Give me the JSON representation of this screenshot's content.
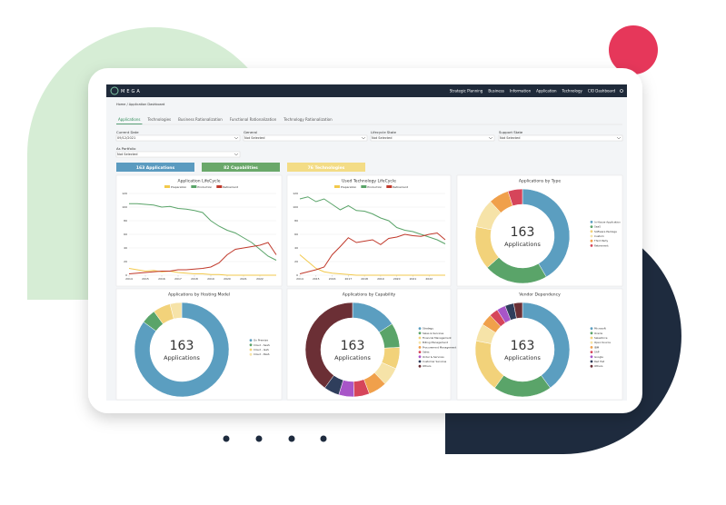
{
  "brand": "MEGA",
  "nav": [
    "Strategic Planning",
    "Business",
    "Information",
    "Application",
    "Technology",
    "CIO Dashboard"
  ],
  "breadcrumb": "Home / Application Dashboard",
  "tabs": [
    "Applications",
    "Technologies",
    "Business Rationalization",
    "Functional Rationalization",
    "Technology Rationalization"
  ],
  "filters": [
    {
      "label": "Current Date",
      "value": "09/12/2021"
    },
    {
      "label": "General",
      "value": "Not Selected"
    },
    {
      "label": "Lifecycle State",
      "value": "Not Selected"
    },
    {
      "label": "Support State",
      "value": "Not Selected"
    },
    {
      "label": "As Portfolio",
      "value": "Not Selected"
    }
  ],
  "badges": [
    {
      "text": "163 Applications",
      "color": "#5b9bc0"
    },
    {
      "text": "82 Capabilities",
      "color": "#6aa86a"
    },
    {
      "text": "76 Technologies",
      "color": "#f3dc86"
    }
  ],
  "chart_data": [
    {
      "type": "line",
      "title": "Application LifeCycle",
      "xlim": [
        2014,
        2023
      ],
      "xticks": [
        2014,
        2015,
        2016,
        2017,
        2018,
        2019,
        2020,
        2021,
        2022
      ],
      "ylim": [
        0,
        120
      ],
      "yticks": [
        0,
        20,
        40,
        60,
        80,
        100,
        120
      ],
      "grid": true,
      "x": [
        2014,
        2014.5,
        2015,
        2015.5,
        2016,
        2016.5,
        2017,
        2017.5,
        2018,
        2018.5,
        2019,
        2019.5,
        2020,
        2020.5,
        2021,
        2021.5,
        2022,
        2022.5,
        2023
      ],
      "series": [
        {
          "name": "Preparation",
          "color": "#f2c94c",
          "values": [
            10,
            8,
            6,
            7,
            5,
            6,
            4,
            3,
            2,
            2,
            1,
            1,
            0,
            0,
            0,
            0,
            0,
            0,
            0
          ]
        },
        {
          "name": "Production",
          "color": "#5aa469",
          "values": [
            105,
            105,
            104,
            103,
            100,
            101,
            98,
            97,
            95,
            92,
            80,
            72,
            66,
            62,
            55,
            48,
            38,
            28,
            22
          ]
        },
        {
          "name": "Retirement",
          "color": "#c0392b",
          "values": [
            2,
            3,
            4,
            5,
            6,
            6,
            8,
            8,
            9,
            10,
            12,
            18,
            30,
            38,
            40,
            42,
            44,
            48,
            30
          ]
        }
      ]
    },
    {
      "type": "line",
      "title": "Used Technology LifeCycle",
      "xlim": [
        2014,
        2023
      ],
      "xticks": [
        2014,
        2015,
        2016,
        2017,
        2018,
        2019,
        2020,
        2021,
        2022
      ],
      "ylim": [
        0,
        120
      ],
      "yticks": [
        0,
        20,
        40,
        60,
        80,
        100,
        120
      ],
      "grid": true,
      "x": [
        2014,
        2014.5,
        2015,
        2015.5,
        2016,
        2016.5,
        2017,
        2017.5,
        2018,
        2018.5,
        2019,
        2019.5,
        2020,
        2020.5,
        2021,
        2021.5,
        2022,
        2022.5,
        2023
      ],
      "series": [
        {
          "name": "Preparation",
          "color": "#f2c94c",
          "values": [
            30,
            20,
            10,
            5,
            3,
            2,
            1,
            0,
            0,
            0,
            0,
            0,
            0,
            0,
            0,
            0,
            0,
            0,
            0
          ]
        },
        {
          "name": "Production",
          "color": "#5aa469",
          "values": [
            112,
            115,
            108,
            112,
            104,
            96,
            102,
            95,
            94,
            90,
            84,
            80,
            70,
            66,
            64,
            60,
            56,
            52,
            46
          ]
        },
        {
          "name": "Retirement",
          "color": "#c0392b",
          "values": [
            2,
            5,
            8,
            12,
            30,
            42,
            55,
            48,
            50,
            52,
            45,
            54,
            56,
            60,
            58,
            57,
            60,
            62,
            52
          ]
        }
      ]
    },
    {
      "type": "donut",
      "title": "Applications by Type",
      "center_value": 163,
      "center_label": "Applications",
      "categories": [
        "In-House Application",
        "SaaS",
        "Software Package",
        "Custom",
        "Third Party",
        "Retirement"
      ],
      "values": [
        42,
        22,
        15,
        10,
        7,
        5
      ],
      "colors": [
        "#5b9ec0",
        "#5aa469",
        "#f2d27a",
        "#f6e3a8",
        "#f0a04b",
        "#d6455a"
      ]
    },
    {
      "type": "donut",
      "title": "Applications by Hosting Model",
      "center_value": 163,
      "center_label": "Applications",
      "categories": [
        "On Premise",
        "Cloud - SaaS",
        "Cloud - IaaS",
        "Cloud - PaaS"
      ],
      "values": [
        85,
        5,
        6,
        4
      ],
      "colors": [
        "#5b9ec0",
        "#5aa469",
        "#f2d27a",
        "#f6e3a8"
      ]
    },
    {
      "type": "donut",
      "title": "Applications by Capability",
      "center_value": 163,
      "center_label": "Applications",
      "categories": [
        "Strategy",
        "Sales & Services",
        "Financial Management",
        "Billing Management",
        "Procurement Management",
        "Sales",
        "Order & Services",
        "Customer Services",
        "Others"
      ],
      "values": [
        15,
        8,
        7,
        6,
        6,
        5,
        5,
        5,
        38
      ],
      "colors": [
        "#5b9ec0",
        "#5aa469",
        "#f2d27a",
        "#f6e3a8",
        "#f0a04b",
        "#d6455a",
        "#a855c8",
        "#2f3e5c",
        "#6b2f35"
      ]
    },
    {
      "type": "donut",
      "title": "Vendor Dependency",
      "center_value": 163,
      "center_label": "Applications",
      "categories": [
        "Microsoft",
        "Oracle",
        "Salesforce",
        "Open Source",
        "IBM",
        "SAP",
        "Google",
        "Red Hat",
        "Others"
      ],
      "values": [
        40,
        20,
        18,
        6,
        4,
        3,
        3,
        3,
        3
      ],
      "colors": [
        "#5b9ec0",
        "#5aa469",
        "#f2d27a",
        "#f6e3a8",
        "#f0a04b",
        "#d6455a",
        "#a855c8",
        "#2f3e5c",
        "#6b2f35"
      ]
    }
  ]
}
